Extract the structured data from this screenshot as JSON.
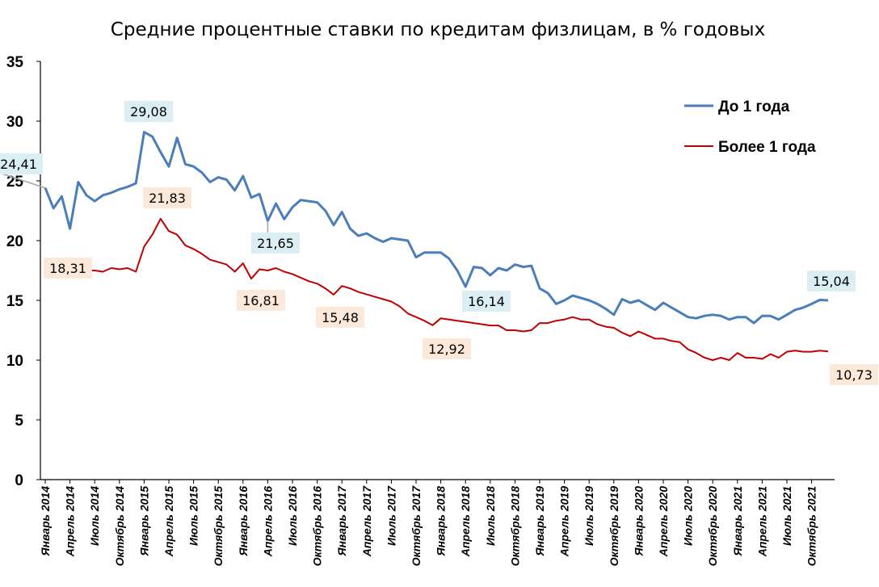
{
  "chart_data": {
    "type": "line",
    "title": "Средние процентные ставки по кредитам физлицам, в % годовых",
    "xlabel": "",
    "ylabel": "",
    "ylim": [
      0,
      35
    ],
    "yticks": [
      "0",
      "5",
      "10",
      "15",
      "20",
      "25",
      "30",
      "35"
    ],
    "grid": false,
    "legend_position": "top-right",
    "x": [
      "Январь 2014",
      "Февраль 2014",
      "Март 2014",
      "Апрель 2014",
      "Май 2014",
      "Июнь 2014",
      "Июль 2014",
      "Август 2014",
      "Сентябрь 2014",
      "Октябрь 2014",
      "Ноябрь 2014",
      "Декабрь 2014",
      "Январь 2015",
      "Февраль 2015",
      "Март 2015",
      "Апрель 2015",
      "Май 2015",
      "Июнь 2015",
      "Июль 2015",
      "Август 2015",
      "Сентябрь 2015",
      "Октябрь 2015",
      "Ноябрь 2015",
      "Декабрь 2015",
      "Январь 2016",
      "Февраль 2016",
      "Март 2016",
      "Апрель 2016",
      "Май 2016",
      "Июнь 2016",
      "Июль 2016",
      "Август 2016",
      "Сентябрь 2016",
      "Октябрь 2016",
      "Ноябрь 2016",
      "Декабрь 2016",
      "Январь 2017",
      "Февраль 2017",
      "Март 2017",
      "Апрель 2017",
      "Май 2017",
      "Июнь 2017",
      "Июль 2017",
      "Август 2017",
      "Сентябрь 2017",
      "Октябрь 2017",
      "Ноябрь 2017",
      "Декабрь 2017",
      "Январь 2018",
      "Февраль 2018",
      "Март 2018",
      "Апрель 2018",
      "Май 2018",
      "Июнь 2018",
      "Июль 2018",
      "Август 2018",
      "Сентябрь 2018",
      "Октябрь 2018",
      "Ноябрь 2018",
      "Декабрь 2018",
      "Январь 2019",
      "Февраль 2019",
      "Март 2019",
      "Апрель 2019",
      "Май 2019",
      "Июнь 2019",
      "Июль 2019",
      "Август 2019",
      "Сентябрь 2019",
      "Октябрь 2019",
      "Ноябрь 2019",
      "Декабрь 2019",
      "Январь 2020",
      "Февраль 2020",
      "Март 2020",
      "Апрель 2020",
      "Май 2020",
      "Июнь 2020",
      "Июль 2020",
      "Август 2020",
      "Сентябрь 2020",
      "Октябрь 2020",
      "Ноябрь 2020",
      "Декабрь 2020",
      "Январь 2021",
      "Февраль 2021",
      "Март 2021",
      "Апрель 2021",
      "Май 2021",
      "Июнь 2021",
      "Июль 2021",
      "Август 2021",
      "Сентябрь 2021",
      "Октябрь 2021",
      "Ноябрь 2021",
      "Декабрь 2021"
    ],
    "xtick_labels": [
      "Январь 2014",
      "Апрель 2014",
      "Июль 2014",
      "Октябрь 2014",
      "Январь 2015",
      "Апрель 2015",
      "Июль 2015",
      "Октябрь 2015",
      "Январь 2016",
      "Апрель 2016",
      "Июль 2016",
      "Октябрь 2016",
      "Январь 2017",
      "Апрель 2017",
      "Июль 2017",
      "Октябрь 2017",
      "Январь 2018",
      "Апрель 2018",
      "Июль 2018",
      "Октябрь 2018",
      "Январь 2019",
      "Апрель 2019",
      "Июль 2019",
      "Октябрь 2019",
      "Январь 2020",
      "Апрель 2020",
      "Июль 2020",
      "Октябрь 2020",
      "Январь 2021",
      "Апрель 2021",
      "Июль 2021",
      "Октябрь 2021"
    ],
    "series": [
      {
        "name": "До 1 года",
        "color": "#4a7ebb",
        "values": [
          24.41,
          22.7,
          23.7,
          21.0,
          24.9,
          23.8,
          23.3,
          23.8,
          24.0,
          24.3,
          24.5,
          24.8,
          29.08,
          28.7,
          27.4,
          26.2,
          28.6,
          26.4,
          26.2,
          25.7,
          24.9,
          25.3,
          25.1,
          24.2,
          25.4,
          23.6,
          23.9,
          21.65,
          23.1,
          21.8,
          22.8,
          23.4,
          23.3,
          23.2,
          22.5,
          21.3,
          22.4,
          21.0,
          20.4,
          20.6,
          20.2,
          19.9,
          20.2,
          20.1,
          20.0,
          18.6,
          19.0,
          19.0,
          19.0,
          18.5,
          17.5,
          16.14,
          17.8,
          17.7,
          17.1,
          17.7,
          17.5,
          18.0,
          17.8,
          17.9,
          16.0,
          15.6,
          14.7,
          15.0,
          15.4,
          15.2,
          15.0,
          14.7,
          14.3,
          13.8,
          15.1,
          14.8,
          15.0,
          14.6,
          14.2,
          14.8,
          14.4,
          14.0,
          13.6,
          13.5,
          13.7,
          13.8,
          13.7,
          13.4,
          13.6,
          13.6,
          13.1,
          13.7,
          13.7,
          13.4,
          13.8,
          14.2,
          14.4,
          14.7,
          15.04,
          15.0
        ]
      },
      {
        "name": "Более 1 года",
        "color": "#c00000",
        "values": [
          18.31,
          17.9,
          17.8,
          17.8,
          17.7,
          17.5,
          17.5,
          17.4,
          17.7,
          17.6,
          17.7,
          17.4,
          19.5,
          20.5,
          21.83,
          20.8,
          20.5,
          19.6,
          19.3,
          18.9,
          18.4,
          18.2,
          18.0,
          17.4,
          18.1,
          16.81,
          17.6,
          17.5,
          17.7,
          17.4,
          17.2,
          16.9,
          16.6,
          16.4,
          16.0,
          15.48,
          16.2,
          16.0,
          15.7,
          15.5,
          15.3,
          15.1,
          14.9,
          14.5,
          13.9,
          13.6,
          13.3,
          12.92,
          13.5,
          13.4,
          13.3,
          13.2,
          13.1,
          13.0,
          12.9,
          12.9,
          12.5,
          12.5,
          12.4,
          12.5,
          13.1,
          13.1,
          13.3,
          13.4,
          13.6,
          13.4,
          13.4,
          13.0,
          12.8,
          12.7,
          12.3,
          12.0,
          12.4,
          12.1,
          11.8,
          11.8,
          11.6,
          11.5,
          10.9,
          10.6,
          10.2,
          10.0,
          10.2,
          10.0,
          10.6,
          10.2,
          10.2,
          10.1,
          10.5,
          10.2,
          10.7,
          10.8,
          10.7,
          10.7,
          10.8,
          10.73
        ]
      }
    ],
    "annotations": [
      {
        "series": 0,
        "index": 0,
        "text": "24,41"
      },
      {
        "series": 0,
        "index": 12,
        "text": "29,08"
      },
      {
        "series": 0,
        "index": 27,
        "text": "21,65"
      },
      {
        "series": 0,
        "index": 51,
        "text": "16,14"
      },
      {
        "series": 0,
        "index": 94,
        "text": "15,04"
      },
      {
        "series": 1,
        "index": 0,
        "text": "18,31"
      },
      {
        "series": 1,
        "index": 14,
        "text": "21,83"
      },
      {
        "series": 1,
        "index": 25,
        "text": "16,81"
      },
      {
        "series": 1,
        "index": 35,
        "text": "15,48"
      },
      {
        "series": 1,
        "index": 47,
        "text": "12,92"
      },
      {
        "series": 1,
        "index": 95,
        "text": "10,73"
      }
    ],
    "label_fill_colors": [
      "#dbeef3",
      "#fde9d9"
    ]
  }
}
